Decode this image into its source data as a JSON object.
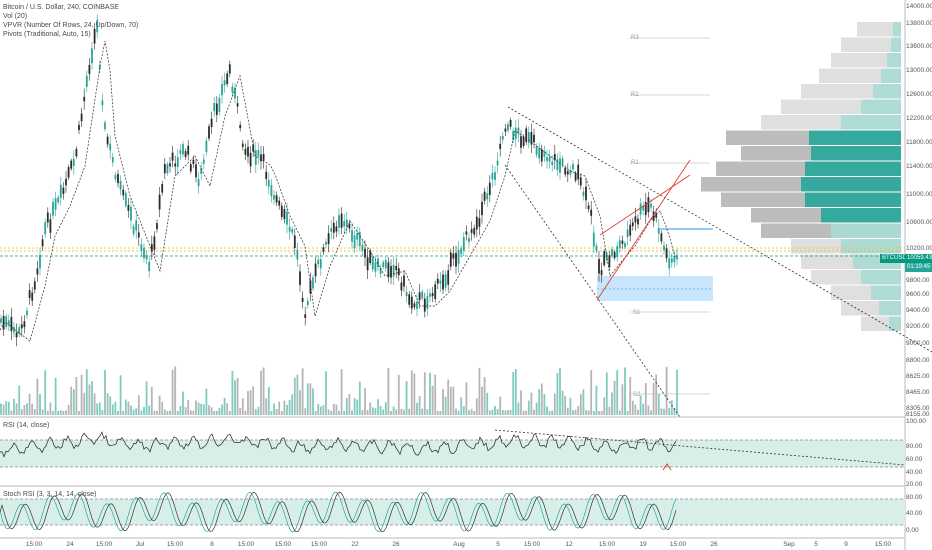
{
  "legend": {
    "title": "Bitcoin / U.S. Dollar, 240, COINBASE",
    "vol": "Vol (20)",
    "vpvr": "VPVR (Number Of Rows, 24, Up/Down, 70)",
    "pivots": "Pivots (Traditional, Auto, 15)",
    "rsi": "RSI (14, close)",
    "stoch": "Stoch RSI (3, 3, 14, 14, close)"
  },
  "price_axis": [
    "14000.00",
    "13800.00",
    "13600.00",
    "13000.00",
    "12600.00",
    "12200.00",
    "11800.00",
    "11400.00",
    "11000.00",
    "10600.00",
    "10200.00",
    "9800.00",
    "9600.00",
    "9400.00",
    "9200.00",
    "9000.00",
    "8800.00",
    "8625.00",
    "8465.00",
    "8305.00",
    "8155.00"
  ],
  "rsi_axis": [
    "100.00",
    "80.00",
    "60.00",
    "40.00",
    "20.00"
  ],
  "stoch_axis": [
    "80.00",
    "40.00",
    "0.00"
  ],
  "time_axis": [
    "15:00",
    "24",
    "15:00",
    "Jul",
    "15:00",
    "8",
    "15:00",
    "15:00",
    "15:00",
    "22",
    "26",
    "Aug",
    "5",
    "15:00",
    "12",
    "15:00",
    "19",
    "15:00",
    "26",
    "Sep",
    "5",
    "9",
    "15:00"
  ],
  "pivots": [
    "R3",
    "R2",
    "R1",
    "S1",
    "S2"
  ],
  "tags": {
    "symbol": "BTCUSD",
    "price": "10059.43",
    "countdown": "01:19:45"
  },
  "colors": {
    "up": "#26a69a",
    "down": "#333333",
    "accent": "#089981",
    "wedge": "#e53935",
    "zone": "#bbdefb",
    "yellow": "#e6c200"
  }
}
